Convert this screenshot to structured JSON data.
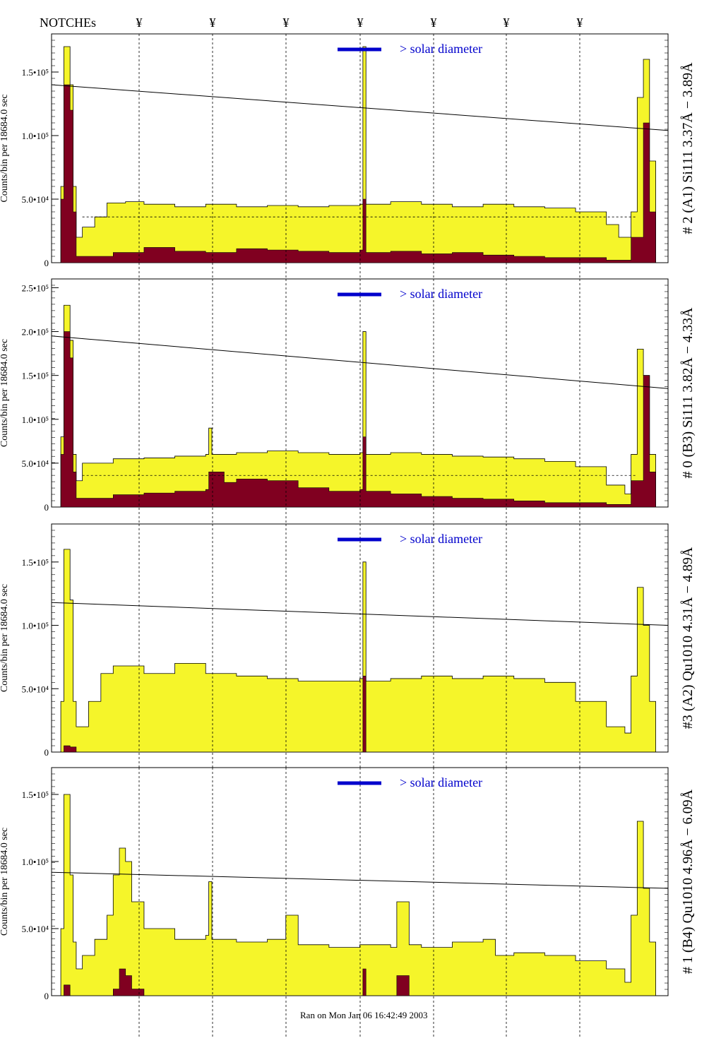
{
  "header": {
    "notches_label": "NOTCHEs",
    "notch_symbol": "¥"
  },
  "footer": {
    "text": "Ran on Mon Jan 06 16:42:49 2003"
  },
  "colors": {
    "yellow_fill": "#f5f52a",
    "dark_fill": "#800020",
    "legend_blue": "#0000cc"
  },
  "chart_data": [
    {
      "type": "area",
      "panel": "# 2 (A1) Si111  3.37Å − 3.89Å",
      "ylabel": "Counts/bin per  18684.0 sec",
      "ylim": [
        0,
        180000
      ],
      "yticks": [
        {
          "v": 0,
          "label": "0"
        },
        {
          "v": 50000,
          "label": "5.0•10⁴"
        },
        {
          "v": 100000,
          "label": "1.0•10⁵"
        },
        {
          "v": 150000,
          "label": "1.5•10⁵"
        }
      ],
      "legend": "> solar diameter",
      "trend": [
        140000,
        104000
      ],
      "dashed_level": 36000,
      "yellow": [
        [
          0.01,
          0
        ],
        [
          0.015,
          60000
        ],
        [
          0.02,
          170000
        ],
        [
          0.03,
          140000
        ],
        [
          0.035,
          60000
        ],
        [
          0.04,
          20000
        ],
        [
          0.05,
          28000
        ],
        [
          0.07,
          36000
        ],
        [
          0.09,
          47000
        ],
        [
          0.12,
          48000
        ],
        [
          0.15,
          46000
        ],
        [
          0.2,
          44000
        ],
        [
          0.25,
          46000
        ],
        [
          0.3,
          44000
        ],
        [
          0.35,
          45000
        ],
        [
          0.4,
          44000
        ],
        [
          0.45,
          45000
        ],
        [
          0.5,
          46000
        ],
        [
          0.505,
          170000
        ],
        [
          0.51,
          46000
        ],
        [
          0.55,
          48000
        ],
        [
          0.6,
          46000
        ],
        [
          0.65,
          44000
        ],
        [
          0.7,
          46000
        ],
        [
          0.75,
          44000
        ],
        [
          0.8,
          43000
        ],
        [
          0.85,
          40000
        ],
        [
          0.9,
          30000
        ],
        [
          0.92,
          20000
        ],
        [
          0.94,
          40000
        ],
        [
          0.95,
          130000
        ],
        [
          0.96,
          160000
        ],
        [
          0.97,
          80000
        ],
        [
          0.98,
          0
        ]
      ],
      "dark": [
        [
          0.01,
          0
        ],
        [
          0.015,
          50000
        ],
        [
          0.02,
          140000
        ],
        [
          0.03,
          120000
        ],
        [
          0.035,
          40000
        ],
        [
          0.04,
          5000
        ],
        [
          0.1,
          8000
        ],
        [
          0.15,
          12000
        ],
        [
          0.2,
          9000
        ],
        [
          0.25,
          8000
        ],
        [
          0.3,
          11000
        ],
        [
          0.35,
          10000
        ],
        [
          0.4,
          9000
        ],
        [
          0.45,
          8000
        ],
        [
          0.5,
          10000
        ],
        [
          0.505,
          50000
        ],
        [
          0.51,
          8000
        ],
        [
          0.55,
          9000
        ],
        [
          0.6,
          7000
        ],
        [
          0.65,
          8000
        ],
        [
          0.7,
          6000
        ],
        [
          0.75,
          5000
        ],
        [
          0.8,
          4000
        ],
        [
          0.9,
          2000
        ],
        [
          0.94,
          20000
        ],
        [
          0.96,
          110000
        ],
        [
          0.97,
          40000
        ],
        [
          0.98,
          0
        ]
      ]
    },
    {
      "type": "area",
      "panel": "# 0 (B3) Si111  3.82Å − 4.33Å",
      "ylabel": "Counts/bin per  18684.0 sec",
      "ylim": [
        0,
        260000
      ],
      "yticks": [
        {
          "v": 0,
          "label": "0"
        },
        {
          "v": 50000,
          "label": "5.0•10⁴"
        },
        {
          "v": 100000,
          "label": "1.0•10⁵"
        },
        {
          "v": 150000,
          "label": "1.5•10⁵"
        },
        {
          "v": 200000,
          "label": "2.0•10⁵"
        },
        {
          "v": 250000,
          "label": "2.5•10⁵"
        }
      ],
      "legend": "> solar diameter",
      "trend": [
        195000,
        135000
      ],
      "dashed_level": 36000,
      "yellow": [
        [
          0.01,
          0
        ],
        [
          0.015,
          80000
        ],
        [
          0.02,
          230000
        ],
        [
          0.03,
          190000
        ],
        [
          0.035,
          60000
        ],
        [
          0.04,
          30000
        ],
        [
          0.05,
          50000
        ],
        [
          0.1,
          55000
        ],
        [
          0.15,
          56000
        ],
        [
          0.2,
          58000
        ],
        [
          0.25,
          60000
        ],
        [
          0.255,
          90000
        ],
        [
          0.26,
          60000
        ],
        [
          0.3,
          62000
        ],
        [
          0.35,
          64000
        ],
        [
          0.4,
          62000
        ],
        [
          0.45,
          60000
        ],
        [
          0.5,
          62000
        ],
        [
          0.505,
          200000
        ],
        [
          0.51,
          60000
        ],
        [
          0.55,
          62000
        ],
        [
          0.6,
          60000
        ],
        [
          0.65,
          58000
        ],
        [
          0.7,
          57000
        ],
        [
          0.75,
          55000
        ],
        [
          0.8,
          52000
        ],
        [
          0.85,
          46000
        ],
        [
          0.9,
          25000
        ],
        [
          0.93,
          15000
        ],
        [
          0.94,
          60000
        ],
        [
          0.95,
          180000
        ],
        [
          0.96,
          150000
        ],
        [
          0.97,
          60000
        ],
        [
          0.98,
          0
        ]
      ],
      "dark": [
        [
          0.01,
          0
        ],
        [
          0.015,
          60000
        ],
        [
          0.02,
          200000
        ],
        [
          0.03,
          170000
        ],
        [
          0.035,
          40000
        ],
        [
          0.04,
          10000
        ],
        [
          0.1,
          14000
        ],
        [
          0.15,
          16000
        ],
        [
          0.2,
          18000
        ],
        [
          0.25,
          20000
        ],
        [
          0.255,
          40000
        ],
        [
          0.28,
          28000
        ],
        [
          0.3,
          32000
        ],
        [
          0.35,
          30000
        ],
        [
          0.4,
          22000
        ],
        [
          0.45,
          18000
        ],
        [
          0.5,
          20000
        ],
        [
          0.505,
          80000
        ],
        [
          0.51,
          18000
        ],
        [
          0.55,
          15000
        ],
        [
          0.6,
          12000
        ],
        [
          0.65,
          10000
        ],
        [
          0.7,
          9000
        ],
        [
          0.75,
          7000
        ],
        [
          0.8,
          5000
        ],
        [
          0.9,
          3000
        ],
        [
          0.94,
          30000
        ],
        [
          0.96,
          150000
        ],
        [
          0.97,
          40000
        ],
        [
          0.98,
          0
        ]
      ]
    },
    {
      "type": "area",
      "panel": "#3 (A2) Qu1010  4.31Å − 4.89Å",
      "ylabel": "Counts/bin per  18684.0 sec",
      "ylim": [
        0,
        180000
      ],
      "yticks": [
        {
          "v": 0,
          "label": "0"
        },
        {
          "v": 50000,
          "label": "5.0•10⁴"
        },
        {
          "v": 100000,
          "label": "1.0•10⁵"
        },
        {
          "v": 150000,
          "label": "1.5•10⁵"
        }
      ],
      "legend": "> solar diameter",
      "trend": [
        118000,
        100000
      ],
      "dashed_level": 0,
      "yellow": [
        [
          0.01,
          0
        ],
        [
          0.015,
          40000
        ],
        [
          0.02,
          160000
        ],
        [
          0.03,
          120000
        ],
        [
          0.035,
          40000
        ],
        [
          0.04,
          20000
        ],
        [
          0.06,
          40000
        ],
        [
          0.08,
          62000
        ],
        [
          0.1,
          68000
        ],
        [
          0.15,
          62000
        ],
        [
          0.2,
          70000
        ],
        [
          0.25,
          62000
        ],
        [
          0.3,
          60000
        ],
        [
          0.35,
          58000
        ],
        [
          0.4,
          56000
        ],
        [
          0.45,
          56000
        ],
        [
          0.5,
          58000
        ],
        [
          0.505,
          150000
        ],
        [
          0.51,
          56000
        ],
        [
          0.55,
          58000
        ],
        [
          0.6,
          60000
        ],
        [
          0.65,
          58000
        ],
        [
          0.7,
          60000
        ],
        [
          0.75,
          58000
        ],
        [
          0.8,
          55000
        ],
        [
          0.85,
          40000
        ],
        [
          0.9,
          20000
        ],
        [
          0.93,
          15000
        ],
        [
          0.94,
          60000
        ],
        [
          0.95,
          130000
        ],
        [
          0.96,
          100000
        ],
        [
          0.97,
          40000
        ],
        [
          0.98,
          0
        ]
      ],
      "dark": [
        [
          0.01,
          0
        ],
        [
          0.02,
          5000
        ],
        [
          0.03,
          4000
        ],
        [
          0.04,
          0
        ],
        [
          0.5,
          0
        ],
        [
          0.505,
          60000
        ],
        [
          0.51,
          0
        ],
        [
          0.98,
          0
        ]
      ]
    },
    {
      "type": "area",
      "panel": "# 1 (B4) Qu1010 4.96Å − 6.09Å",
      "ylabel": "Counts/bin per  18684.0 sec",
      "ylim": [
        0,
        170000
      ],
      "yticks": [
        {
          "v": 0,
          "label": "0"
        },
        {
          "v": 50000,
          "label": "5.0•10⁴"
        },
        {
          "v": 100000,
          "label": "1.0•10⁵"
        },
        {
          "v": 150000,
          "label": "1.5•10⁵"
        }
      ],
      "legend": "> solar diameter",
      "trend": [
        92000,
        80000
      ],
      "dashed_level": 0,
      "yellow": [
        [
          0.01,
          0
        ],
        [
          0.015,
          50000
        ],
        [
          0.02,
          150000
        ],
        [
          0.03,
          90000
        ],
        [
          0.035,
          40000
        ],
        [
          0.04,
          20000
        ],
        [
          0.05,
          30000
        ],
        [
          0.07,
          42000
        ],
        [
          0.09,
          60000
        ],
        [
          0.1,
          90000
        ],
        [
          0.11,
          110000
        ],
        [
          0.12,
          100000
        ],
        [
          0.13,
          70000
        ],
        [
          0.15,
          50000
        ],
        [
          0.2,
          42000
        ],
        [
          0.25,
          45000
        ],
        [
          0.255,
          85000
        ],
        [
          0.26,
          42000
        ],
        [
          0.3,
          40000
        ],
        [
          0.35,
          42000
        ],
        [
          0.38,
          60000
        ],
        [
          0.4,
          38000
        ],
        [
          0.45,
          36000
        ],
        [
          0.5,
          38000
        ],
        [
          0.55,
          36000
        ],
        [
          0.56,
          70000
        ],
        [
          0.58,
          38000
        ],
        [
          0.6,
          36000
        ],
        [
          0.65,
          40000
        ],
        [
          0.7,
          42000
        ],
        [
          0.72,
          30000
        ],
        [
          0.75,
          32000
        ],
        [
          0.8,
          30000
        ],
        [
          0.85,
          26000
        ],
        [
          0.9,
          20000
        ],
        [
          0.93,
          10000
        ],
        [
          0.94,
          60000
        ],
        [
          0.95,
          130000
        ],
        [
          0.96,
          80000
        ],
        [
          0.97,
          40000
        ],
        [
          0.98,
          0
        ]
      ],
      "dark": [
        [
          0.01,
          0
        ],
        [
          0.02,
          8000
        ],
        [
          0.03,
          0
        ],
        [
          0.1,
          5000
        ],
        [
          0.11,
          20000
        ],
        [
          0.12,
          15000
        ],
        [
          0.13,
          5000
        ],
        [
          0.15,
          0
        ],
        [
          0.2,
          0
        ],
        [
          0.5,
          0
        ],
        [
          0.505,
          20000
        ],
        [
          0.51,
          0
        ],
        [
          0.56,
          15000
        ],
        [
          0.58,
          0
        ],
        [
          0.98,
          0
        ]
      ]
    }
  ]
}
